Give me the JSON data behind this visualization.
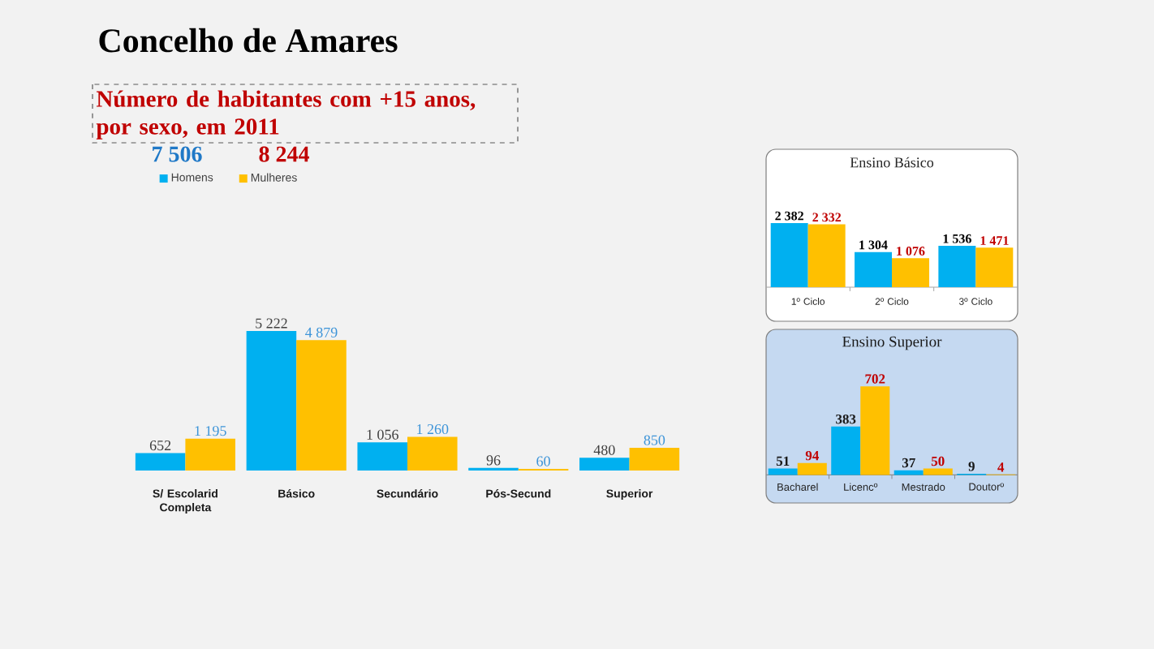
{
  "chart_data": [
    {
      "type": "bar",
      "title": "Concelho de Amares",
      "subtitle": "Número de habitantes com +15 anos, por sexo, em 2011",
      "annotations": [
        "7 506",
        "8 244"
      ],
      "categories": [
        "S/ Escolarid Completa",
        "Básico",
        "Secundário",
        "Pós-Secund",
        "Superior"
      ],
      "series": [
        {
          "name": "Homens",
          "color": "#00b0f0",
          "values": [
            652,
            5222,
            1056,
            96,
            480
          ],
          "value_labels": [
            "652",
            "5 222",
            "1 056",
            "96",
            "480"
          ]
        },
        {
          "name": "Mulheres",
          "color": "#ffc000",
          "values": [
            1195,
            4879,
            1260,
            60,
            850
          ],
          "value_labels": [
            "1 195",
            "4 879",
            "1 260",
            "60",
            "850"
          ]
        }
      ],
      "legend": "top left"
    },
    {
      "type": "bar",
      "title": "Ensino Básico",
      "categories": [
        "1º Ciclo",
        "2º Ciclo",
        "3º Ciclo"
      ],
      "series": [
        {
          "color": "#00b0f0",
          "values": [
            2382,
            1304,
            1536
          ],
          "value_labels": [
            "2 382",
            "1 304",
            "1 536"
          ]
        },
        {
          "color": "#ffc000",
          "values": [
            2332,
            1076,
            1471
          ],
          "value_labels": [
            "2 332",
            "1 076",
            "1 471"
          ]
        }
      ]
    },
    {
      "type": "bar",
      "title": "Ensino Superior",
      "categories": [
        "Bacharel",
        "Licencº",
        "Mestrado",
        "Doutorº"
      ],
      "series": [
        {
          "color": "#00b0f0",
          "values": [
            51,
            383,
            37,
            9
          ],
          "value_labels": [
            "51",
            "383",
            "37",
            "9"
          ]
        },
        {
          "color": "#ffc000",
          "values": [
            94,
            702,
            50,
            4
          ],
          "value_labels": [
            "94",
            "702",
            "50",
            "4"
          ]
        }
      ]
    }
  ]
}
